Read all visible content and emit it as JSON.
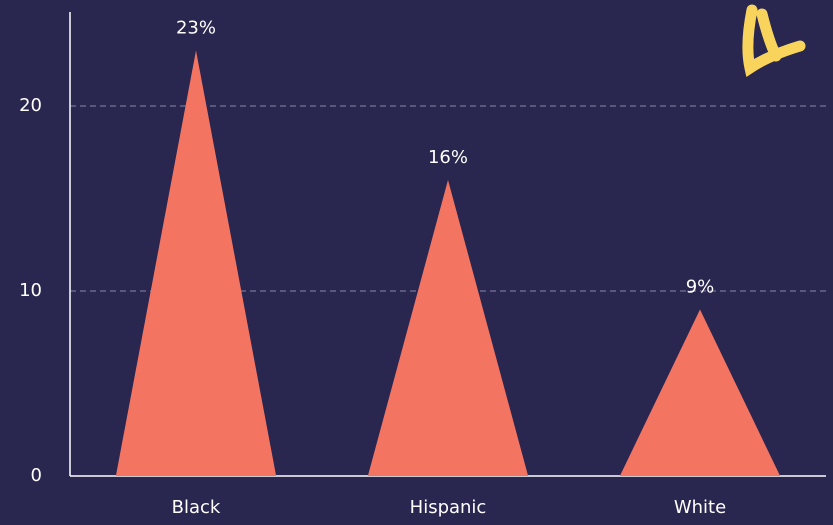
{
  "chart_data": {
    "type": "bar",
    "categories": [
      "Black",
      "Hispanic",
      "White"
    ],
    "values": [
      23,
      16,
      9
    ],
    "value_labels": [
      "23%",
      "16%",
      "9%"
    ],
    "color": "#f47462",
    "ylim": [
      0,
      25
    ],
    "yticks": [
      0,
      10,
      20
    ],
    "grid": true
  }
}
